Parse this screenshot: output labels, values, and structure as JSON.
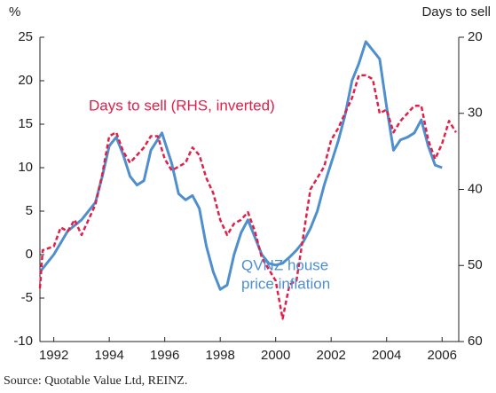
{
  "chart_data": {
    "type": "line",
    "y_axis_label": "%",
    "y2_axis_label": "Days to sell",
    "source": "Source: Quotable Value Ltd, REINZ.",
    "xlim": [
      1991.5,
      2006.6
    ],
    "xticks": [
      1992,
      1994,
      1996,
      1998,
      2000,
      2002,
      2004,
      2006
    ],
    "ylim": [
      -10,
      25
    ],
    "yticks": [
      -10,
      -5,
      0,
      5,
      10,
      15,
      20,
      25
    ],
    "y2lim": [
      60,
      20
    ],
    "y2ticks": [
      20,
      30,
      40,
      50,
      60
    ],
    "grid": false,
    "series": [
      {
        "name": [
          "QVNZ house",
          "price inflation"
        ],
        "color": "#4f8fce",
        "axis": "y",
        "dash": false,
        "x": [
          1991.5,
          1992,
          1992.5,
          1993,
          1993.5,
          1993.75,
          1994,
          1994.25,
          1994.5,
          1994.75,
          1995,
          1995.25,
          1995.5,
          1995.9,
          1996.25,
          1996.5,
          1996.75,
          1997,
          1997.25,
          1997.5,
          1997.75,
          1998,
          1998.25,
          1998.5,
          1998.75,
          1999,
          1999.25,
          1999.5,
          1999.75,
          2000,
          2000.25,
          2000.5,
          2000.75,
          2001,
          2001.25,
          2001.5,
          2001.75,
          2002,
          2002.25,
          2002.5,
          2002.75,
          2003,
          2003.25,
          2003.5,
          2003.75,
          2004,
          2004.25,
          2004.5,
          2004.75,
          2005,
          2005.25,
          2005.5,
          2005.75,
          2006
        ],
        "values": [
          -2,
          0,
          2.7,
          4,
          6,
          9,
          12.5,
          13.5,
          11.5,
          9,
          8,
          8.5,
          12,
          14,
          10.5,
          7,
          6.3,
          6.8,
          5.3,
          1,
          -2,
          -4,
          -3.5,
          0,
          2.5,
          4,
          2,
          0,
          -1,
          -1.2,
          -1,
          -0.3,
          0.5,
          1.5,
          3,
          5,
          8,
          10.5,
          13,
          16,
          20,
          22,
          24.5,
          23.5,
          22.5,
          17,
          12,
          13.2,
          13.5,
          14,
          15.5,
          12.5,
          10.3,
          10
        ]
      },
      {
        "name": "Days to sell (RHS, inverted)",
        "color": "#e0204a",
        "axis": "y2",
        "dash": true,
        "x": [
          1991.5,
          1991.6,
          1992,
          1992.25,
          1992.5,
          1992.75,
          1993,
          1993.25,
          1993.5,
          1993.75,
          1994,
          1994.25,
          1994.5,
          1994.75,
          1995,
          1995.25,
          1995.5,
          1995.75,
          1996,
          1996.25,
          1996.5,
          1996.75,
          1997,
          1997.25,
          1997.5,
          1997.75,
          1998,
          1998.25,
          1998.5,
          1998.75,
          1999,
          1999.25,
          1999.5,
          1999.75,
          2000,
          2000.25,
          2000.5,
          2000.75,
          2001,
          2001.25,
          2001.5,
          2001.75,
          2002,
          2002.25,
          2002.5,
          2002.75,
          2003,
          2003.25,
          2003.5,
          2003.75,
          2004,
          2004.25,
          2004.5,
          2004.75,
          2005,
          2005.25,
          2005.5,
          2005.75,
          2006,
          2006.25,
          2006.5
        ],
        "values": [
          53,
          48,
          47.5,
          45,
          45.5,
          44,
          46,
          44,
          42,
          38,
          33,
          32.5,
          35,
          36.5,
          35.5,
          34.5,
          33,
          33,
          36,
          37.5,
          37,
          36.5,
          34.5,
          35.5,
          38.5,
          40.5,
          44,
          46,
          44.5,
          44,
          43,
          45.5,
          49,
          50.5,
          52,
          57,
          52.5,
          52,
          46,
          40,
          38.5,
          37,
          33.5,
          32,
          30,
          28,
          25,
          25,
          25.5,
          30,
          29.5,
          32.5,
          31,
          30,
          29,
          29,
          33.5,
          36,
          34,
          31,
          32.5
        ]
      }
    ]
  }
}
